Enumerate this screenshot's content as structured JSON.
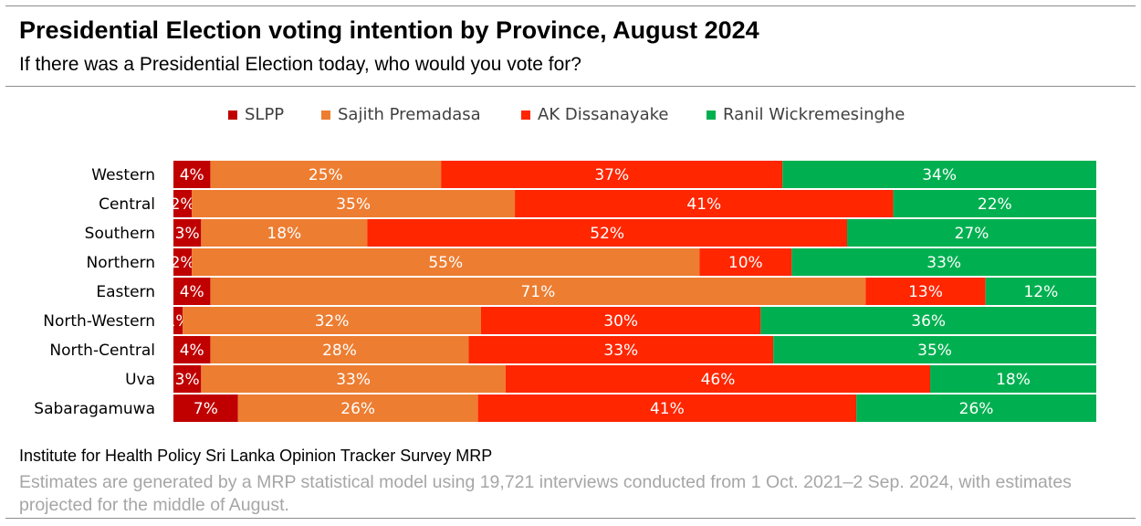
{
  "header": {
    "title": "Presidential Election voting intention by Province, August 2024",
    "subtitle": "If there was a Presidential Election today, who would you vote for?"
  },
  "footer": {
    "source": "Institute for Health Policy Sri Lanka Opinion Tracker Survey MRP",
    "note": "Estimates are generated by a MRP statistical model using 19,721 interviews conducted from 1 Oct. 2021–2 Sep. 2024, with estimates projected for the middle of August."
  },
  "chart_data": {
    "type": "bar",
    "orientation": "horizontal",
    "stacked": true,
    "percent": true,
    "title": "Presidential Election voting intention by Province, August 2024",
    "subtitle": "If there was a Presidential Election today, who would you vote for?",
    "legend_position": "top",
    "grid": false,
    "categories": [
      "Western",
      "Central",
      "Southern",
      "Northern",
      "Eastern",
      "North-Western",
      "North-Central",
      "Uva",
      "Sabaragamuwa"
    ],
    "series": [
      {
        "name": "SLPP",
        "color": "#c00000",
        "values": [
          4,
          2,
          3,
          2,
          4,
          1,
          4,
          3,
          7
        ]
      },
      {
        "name": "Sajith Premadasa",
        "color": "#ed7d31",
        "values": [
          25,
          35,
          18,
          55,
          71,
          32,
          28,
          33,
          26
        ]
      },
      {
        "name": "AK Dissanayake",
        "color": "#ff2600",
        "values": [
          37,
          41,
          52,
          10,
          13,
          30,
          33,
          46,
          41
        ]
      },
      {
        "name": "Ranil Wickremesinghe",
        "color": "#00b050",
        "values": [
          34,
          22,
          27,
          33,
          12,
          36,
          35,
          18,
          26
        ]
      }
    ]
  }
}
